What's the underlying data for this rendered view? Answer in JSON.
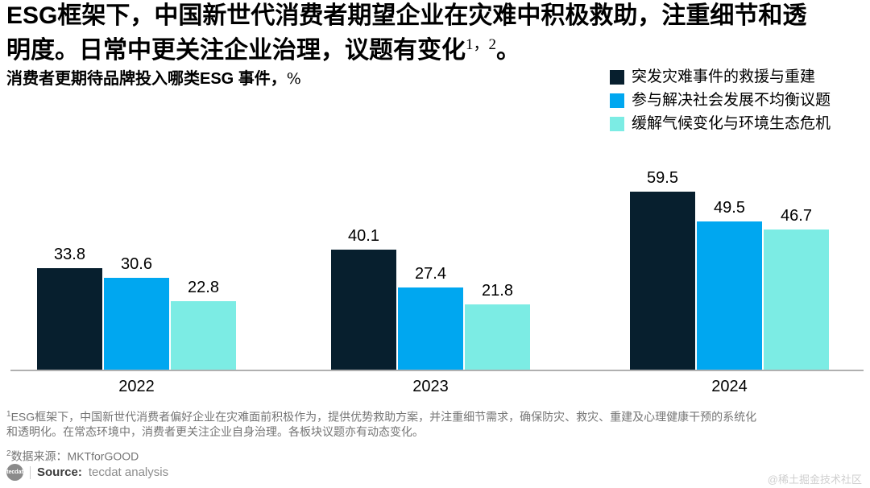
{
  "title": {
    "line1": "ESG框架下，中国新世代消费者期望企业在灾难中积极救助，注重细节和透",
    "line2": "明度。日常中更关注企业治理，议题有变化",
    "superscript": "1，2",
    "suffix": "。"
  },
  "subtitle": {
    "text": "消费者更期待品牌投入哪类ESG 事件，",
    "unit": "%"
  },
  "chart_data": {
    "type": "bar",
    "title": "消费者更期待品牌投入哪类ESG 事件，%",
    "categories": [
      "2022",
      "2023",
      "2024"
    ],
    "series": [
      {
        "name": "突发灾难事件的救援与重建",
        "color": "#071f2e",
        "values": [
          33.8,
          40.1,
          59.5
        ]
      },
      {
        "name": "参与解决社会发展不均衡议题",
        "color": "#00a7f0",
        "values": [
          30.6,
          27.4,
          49.5
        ]
      },
      {
        "name": "缓解气候变化与环境生态危机",
        "color": "#7cece4",
        "values": [
          22.8,
          21.8,
          46.7
        ]
      }
    ],
    "ylim": [
      0,
      65
    ],
    "unit": "%",
    "grid": false,
    "legend_position": "top-right",
    "value_labels": true
  },
  "footnotes": [
    {
      "sup": "1",
      "line1": "ESG框架下，中国新世代消费者偏好企业在灾难面前积极作为，提供优势救助方案，并注重细节需求，确保防灾、救灾、重建及心理健康干预的系统化",
      "line2": "和透明化。在常态环境中，消费者更关注企业自身治理。各板块议题亦有动态变化。"
    },
    {
      "sup": "2",
      "text": "数据来源：MKTforGOOD"
    }
  ],
  "source": {
    "logo": "tecdat",
    "label": "Source:",
    "value": "tecdat analysis"
  },
  "watermark": "@稀土掘金技术社区",
  "colors": {
    "bar_dark": "#071f2e",
    "bar_blue": "#00a7f0",
    "bar_teal": "#7cece4",
    "axis_line": "#b0b0b0",
    "footnote_text": "#757575",
    "watermark_text": "#cfcfcf"
  }
}
